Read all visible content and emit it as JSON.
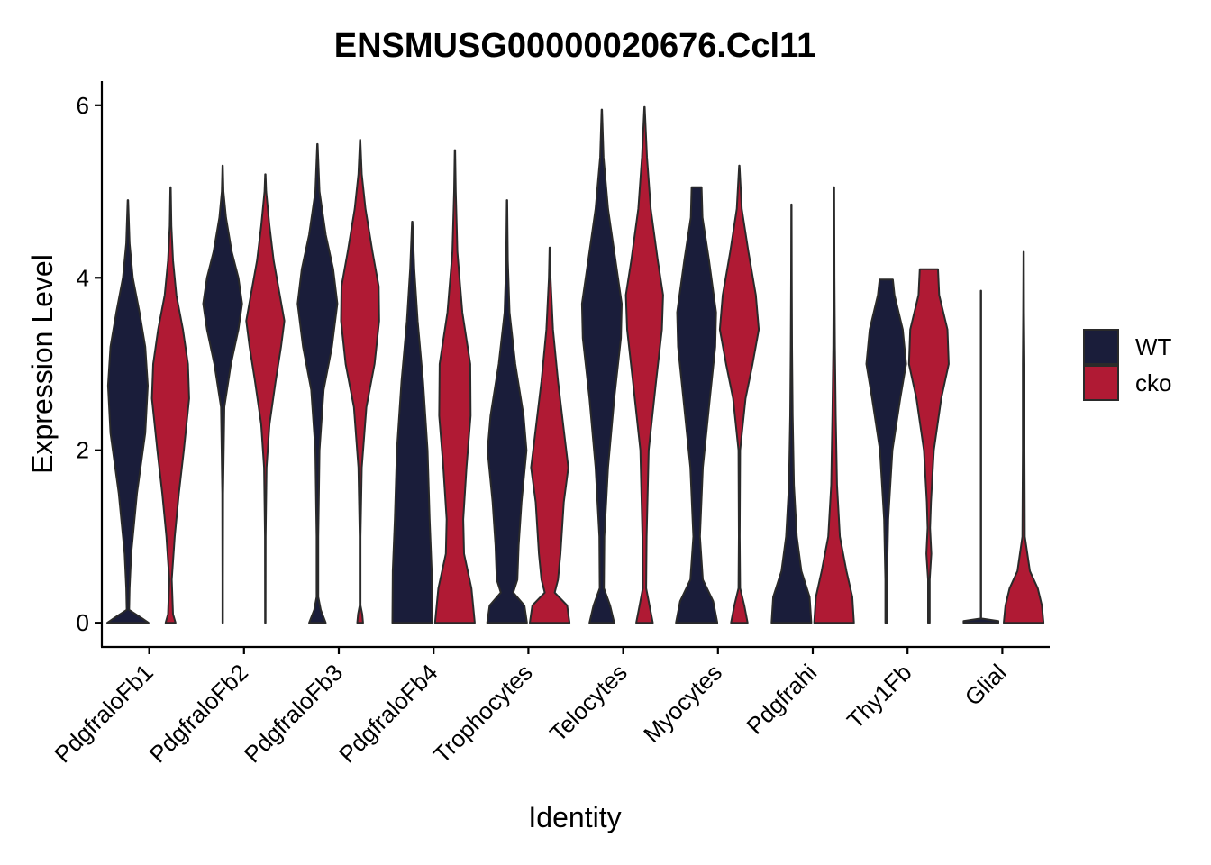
{
  "chart_data": {
    "type": "violin",
    "title": "ENSMUSG00000020676.Ccl11",
    "xlabel": "Identity",
    "ylabel": "Expression Level",
    "ylim": [
      -0.28,
      6.28
    ],
    "yticks": [
      0,
      2,
      4,
      6
    ],
    "grid": false,
    "legend_position": "right",
    "categories": [
      "PdgfraloFb1",
      "PdgfraloFb2",
      "PdgfraloFb3",
      "PdgfraloFb4",
      "Trophocytes",
      "Telocytes",
      "Myocytes",
      "Pdgfrahi",
      "Thy1Fb",
      "Glial"
    ],
    "series": [
      {
        "name": "WT",
        "color": "#1a1d3a",
        "max": [
          4.9,
          5.3,
          5.55,
          4.65,
          4.9,
          5.95,
          5.05,
          4.85,
          3.98,
          3.85
        ],
        "density": [
          [
            [
              0,
              0.5
            ],
            [
              0.05,
              0.35
            ],
            [
              0.15,
              0.03
            ],
            [
              0.4,
              0.04
            ],
            [
              0.8,
              0.08
            ],
            [
              1.5,
              0.22
            ],
            [
              2.2,
              0.42
            ],
            [
              2.75,
              0.48
            ],
            [
              3.2,
              0.42
            ],
            [
              3.6,
              0.28
            ],
            [
              4.0,
              0.12
            ],
            [
              4.4,
              0.04
            ],
            [
              4.9,
              0.005
            ]
          ],
          [
            [
              0,
              0.005
            ],
            [
              0.5,
              0.006
            ],
            [
              1.5,
              0.01
            ],
            [
              2.5,
              0.04
            ],
            [
              3.0,
              0.2
            ],
            [
              3.4,
              0.38
            ],
            [
              3.7,
              0.47
            ],
            [
              4.0,
              0.38
            ],
            [
              4.3,
              0.22
            ],
            [
              4.7,
              0.08
            ],
            [
              5.0,
              0.02
            ],
            [
              5.3,
              0.004
            ]
          ],
          [
            [
              0,
              0.2
            ],
            [
              0.15,
              0.08
            ],
            [
              0.3,
              0.02
            ],
            [
              1.0,
              0.02
            ],
            [
              2.0,
              0.05
            ],
            [
              2.7,
              0.15
            ],
            [
              3.2,
              0.35
            ],
            [
              3.7,
              0.48
            ],
            [
              4.1,
              0.38
            ],
            [
              4.5,
              0.2
            ],
            [
              5.0,
              0.05
            ],
            [
              5.55,
              0.004
            ]
          ],
          [
            [
              0,
              0.48
            ],
            [
              0.6,
              0.47
            ],
            [
              1.2,
              0.42
            ],
            [
              2.0,
              0.37
            ],
            [
              2.8,
              0.26
            ],
            [
              3.5,
              0.13
            ],
            [
              4.1,
              0.05
            ],
            [
              4.65,
              0.006
            ]
          ],
          [
            [
              0,
              0.48
            ],
            [
              0.2,
              0.42
            ],
            [
              0.35,
              0.15
            ],
            [
              0.5,
              0.25
            ],
            [
              0.9,
              0.28
            ],
            [
              1.4,
              0.35
            ],
            [
              2.0,
              0.47
            ],
            [
              2.4,
              0.4
            ],
            [
              3.0,
              0.2
            ],
            [
              3.6,
              0.06
            ],
            [
              4.2,
              0.02
            ],
            [
              4.9,
              0.004
            ]
          ],
          [
            [
              0,
              0.3
            ],
            [
              0.2,
              0.2
            ],
            [
              0.4,
              0.05
            ],
            [
              1.0,
              0.06
            ],
            [
              1.8,
              0.15
            ],
            [
              2.6,
              0.3
            ],
            [
              3.3,
              0.46
            ],
            [
              3.7,
              0.48
            ],
            [
              4.2,
              0.33
            ],
            [
              4.8,
              0.15
            ],
            [
              5.4,
              0.04
            ],
            [
              5.95,
              0.004
            ]
          ],
          [
            [
              0,
              0.5
            ],
            [
              0.25,
              0.4
            ],
            [
              0.5,
              0.15
            ],
            [
              1.0,
              0.08
            ],
            [
              1.8,
              0.15
            ],
            [
              2.6,
              0.32
            ],
            [
              3.2,
              0.45
            ],
            [
              3.6,
              0.47
            ],
            [
              4.2,
              0.3
            ],
            [
              4.7,
              0.14
            ],
            [
              5.05,
              0.12
            ]
          ],
          [
            [
              0,
              0.48
            ],
            [
              0.3,
              0.44
            ],
            [
              0.6,
              0.24
            ],
            [
              1.0,
              0.13
            ],
            [
              1.6,
              0.06
            ],
            [
              2.4,
              0.03
            ],
            [
              3.2,
              0.015
            ],
            [
              4.0,
              0.008
            ],
            [
              4.85,
              0.003
            ]
          ],
          [
            [
              0,
              0.02
            ],
            [
              0.5,
              0.02
            ],
            [
              1.2,
              0.05
            ],
            [
              2.0,
              0.15
            ],
            [
              2.6,
              0.34
            ],
            [
              3.0,
              0.48
            ],
            [
              3.4,
              0.4
            ],
            [
              3.8,
              0.2
            ],
            [
              3.98,
              0.16
            ]
          ],
          [
            [
              0,
              0.42
            ],
            [
              0.02,
              0.42
            ],
            [
              0.05,
              0.004
            ],
            [
              3.85,
              0.004
            ]
          ]
        ]
      },
      {
        "name": "cko",
        "color": "#b01a34",
        "max": [
          5.05,
          5.2,
          5.6,
          5.48,
          4.35,
          5.98,
          5.3,
          5.05,
          4.1,
          4.3
        ],
        "density": [
          [
            [
              0,
              0.12
            ],
            [
              0.1,
              0.06
            ],
            [
              0.5,
              0.03
            ],
            [
              1.0,
              0.1
            ],
            [
              1.5,
              0.2
            ],
            [
              2.0,
              0.32
            ],
            [
              2.6,
              0.45
            ],
            [
              3.0,
              0.42
            ],
            [
              3.4,
              0.3
            ],
            [
              3.8,
              0.14
            ],
            [
              4.2,
              0.06
            ],
            [
              4.6,
              0.02
            ],
            [
              5.05,
              0.004
            ]
          ],
          [
            [
              0,
              0.005
            ],
            [
              1.0,
              0.008
            ],
            [
              1.8,
              0.03
            ],
            [
              2.3,
              0.1
            ],
            [
              2.8,
              0.25
            ],
            [
              3.2,
              0.38
            ],
            [
              3.5,
              0.46
            ],
            [
              3.8,
              0.35
            ],
            [
              4.2,
              0.2
            ],
            [
              4.6,
              0.1
            ],
            [
              5.0,
              0.02
            ],
            [
              5.2,
              0.004
            ]
          ],
          [
            [
              0,
              0.07
            ],
            [
              0.1,
              0.05
            ],
            [
              0.2,
              0.01
            ],
            [
              1.0,
              0.01
            ],
            [
              1.8,
              0.04
            ],
            [
              2.5,
              0.15
            ],
            [
              3.0,
              0.35
            ],
            [
              3.5,
              0.46
            ],
            [
              3.9,
              0.45
            ],
            [
              4.3,
              0.3
            ],
            [
              4.8,
              0.13
            ],
            [
              5.2,
              0.04
            ],
            [
              5.6,
              0.004
            ]
          ],
          [
            [
              0,
              0.48
            ],
            [
              0.4,
              0.4
            ],
            [
              0.8,
              0.22
            ],
            [
              1.2,
              0.2
            ],
            [
              1.8,
              0.28
            ],
            [
              2.4,
              0.38
            ],
            [
              3.0,
              0.37
            ],
            [
              3.6,
              0.18
            ],
            [
              4.3,
              0.06
            ],
            [
              5.0,
              0.02
            ],
            [
              5.48,
              0.004
            ]
          ],
          [
            [
              0,
              0.48
            ],
            [
              0.2,
              0.42
            ],
            [
              0.35,
              0.12
            ],
            [
              0.5,
              0.2
            ],
            [
              0.8,
              0.26
            ],
            [
              1.4,
              0.34
            ],
            [
              1.8,
              0.45
            ],
            [
              2.2,
              0.35
            ],
            [
              2.8,
              0.2
            ],
            [
              3.4,
              0.08
            ],
            [
              4.0,
              0.02
            ],
            [
              4.35,
              0.004
            ]
          ],
          [
            [
              0,
              0.2
            ],
            [
              0.2,
              0.12
            ],
            [
              0.4,
              0.04
            ],
            [
              1.0,
              0.05
            ],
            [
              2.0,
              0.1
            ],
            [
              2.8,
              0.28
            ],
            [
              3.4,
              0.42
            ],
            [
              3.8,
              0.45
            ],
            [
              4.2,
              0.32
            ],
            [
              4.8,
              0.15
            ],
            [
              5.4,
              0.06
            ],
            [
              5.98,
              0.004
            ]
          ],
          [
            [
              0,
              0.2
            ],
            [
              0.2,
              0.12
            ],
            [
              0.4,
              0.02
            ],
            [
              1.0,
              0.01
            ],
            [
              2.0,
              0.02
            ],
            [
              2.6,
              0.15
            ],
            [
              3.0,
              0.32
            ],
            [
              3.4,
              0.47
            ],
            [
              3.8,
              0.4
            ],
            [
              4.3,
              0.22
            ],
            [
              4.8,
              0.06
            ],
            [
              5.3,
              0.004
            ]
          ],
          [
            [
              0,
              0.48
            ],
            [
              0.3,
              0.44
            ],
            [
              0.6,
              0.3
            ],
            [
              1.0,
              0.14
            ],
            [
              1.6,
              0.07
            ],
            [
              2.4,
              0.04
            ],
            [
              3.2,
              0.02
            ],
            [
              4.0,
              0.01
            ],
            [
              5.05,
              0.003
            ]
          ],
          [
            [
              0,
              0.02
            ],
            [
              0.5,
              0.02
            ],
            [
              0.8,
              0.06
            ],
            [
              1.1,
              0.03
            ],
            [
              1.4,
              0.05
            ],
            [
              2.0,
              0.12
            ],
            [
              2.6,
              0.3
            ],
            [
              3.0,
              0.48
            ],
            [
              3.4,
              0.45
            ],
            [
              3.8,
              0.25
            ],
            [
              4.1,
              0.22
            ]
          ],
          [
            [
              0,
              0.48
            ],
            [
              0.2,
              0.44
            ],
            [
              0.4,
              0.34
            ],
            [
              0.6,
              0.15
            ],
            [
              1.0,
              0.03
            ],
            [
              2.0,
              0.02
            ],
            [
              3.0,
              0.02
            ],
            [
              3.6,
              0.01
            ],
            [
              4.3,
              0.004
            ]
          ]
        ]
      }
    ]
  }
}
